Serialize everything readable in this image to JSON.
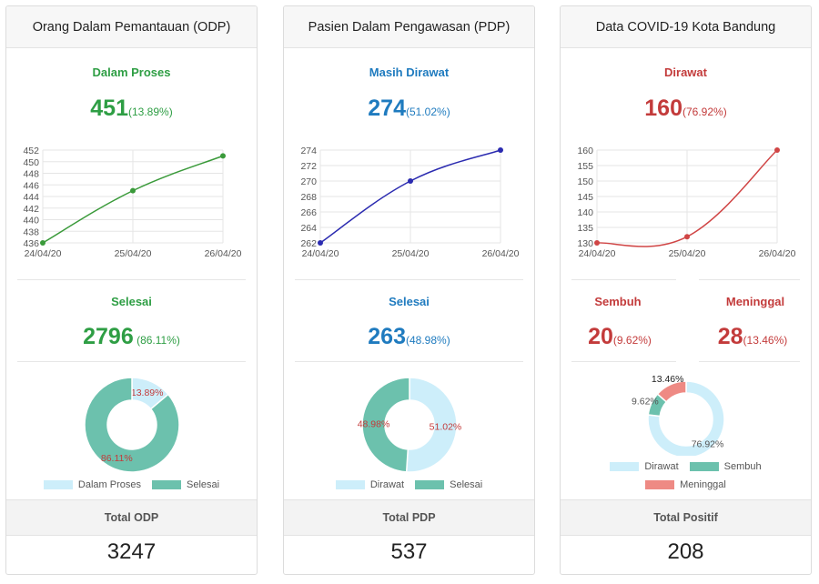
{
  "cards": [
    {
      "header": "Orang Dalam Pemantauan (ODP)",
      "section1": {
        "title": "Dalam Proses",
        "value": "451",
        "percent": "(13.89%)"
      },
      "section2": {
        "title": "Selesai",
        "value": "2796",
        "percent": " (86.11%)"
      },
      "legend": [
        "Dalam Proses",
        "Selesai"
      ],
      "footer_label": "Total ODP",
      "footer_value": "3247"
    },
    {
      "header": "Pasien Dalam Pengawasan (PDP)",
      "section1": {
        "title": "Masih Dirawat",
        "value": "274",
        "percent": "(51.02%)"
      },
      "section2": {
        "title": "Selesai",
        "value": "263",
        "percent": "(48.98%)"
      },
      "legend": [
        "Dirawat",
        "Selesai"
      ],
      "footer_label": "Total PDP",
      "footer_value": "537"
    },
    {
      "header": "Data COVID-19 Kota Bandung",
      "section1": {
        "title": "Dirawat",
        "value": "160",
        "percent": "(76.92%)"
      },
      "sembuh": {
        "title": "Sembuh",
        "value": "20",
        "percent": "(9.62%)"
      },
      "meninggal": {
        "title": "Meninggal",
        "value": "28",
        "percent": "(13.46%)"
      },
      "legend": [
        "Dirawat",
        "Sembuh",
        "Meninggal"
      ],
      "footer_label": "Total Positif",
      "footer_value": "208"
    }
  ],
  "colors": {
    "green": "#2e9e44",
    "blue": "#1f7bbf",
    "red": "#c33b3b",
    "light_blue": "#cdeefa",
    "teal": "#6cc1ad",
    "salmon": "#ee8a84",
    "odp_line": "#3a9a3a",
    "pdp_line": "#2b2bb0",
    "pos_line": "#d04545"
  },
  "chart_data": [
    {
      "type": "line",
      "x": [
        "24/04/20",
        "25/04/20",
        "26/04/20"
      ],
      "series": [
        {
          "values": [
            436,
            445,
            451
          ]
        }
      ],
      "y_ticks": [
        436,
        438,
        440,
        442,
        444,
        446,
        448,
        450,
        452
      ],
      "ylim": [
        436,
        452
      ]
    },
    {
      "type": "line",
      "x": [
        "24/04/20",
        "25/04/20",
        "26/04/20"
      ],
      "series": [
        {
          "values": [
            262,
            270,
            274
          ]
        }
      ],
      "y_ticks": [
        262,
        264,
        266,
        268,
        270,
        272,
        274
      ],
      "ylim": [
        262,
        274
      ]
    },
    {
      "type": "line",
      "x": [
        "24/04/20",
        "25/04/20",
        "26/04/20"
      ],
      "series": [
        {
          "values": [
            130,
            132,
            160
          ]
        }
      ],
      "y_ticks": [
        130,
        135,
        140,
        145,
        150,
        155,
        160
      ],
      "ylim": [
        130,
        160
      ]
    },
    {
      "type": "pie",
      "categories": [
        "Dalam Proses",
        "Selesai"
      ],
      "values": [
        13.89,
        86.11
      ],
      "labels": [
        "13.89%",
        "86.11%"
      ]
    },
    {
      "type": "pie",
      "categories": [
        "Dirawat",
        "Selesai"
      ],
      "values": [
        51.02,
        48.98
      ],
      "labels": [
        "51.02%",
        "48.98%"
      ]
    },
    {
      "type": "pie",
      "categories": [
        "Dirawat",
        "Sembuh",
        "Meninggal"
      ],
      "values": [
        76.92,
        9.62,
        13.46
      ],
      "labels": [
        "76.92%",
        "9.62%",
        "13.46%"
      ]
    }
  ]
}
